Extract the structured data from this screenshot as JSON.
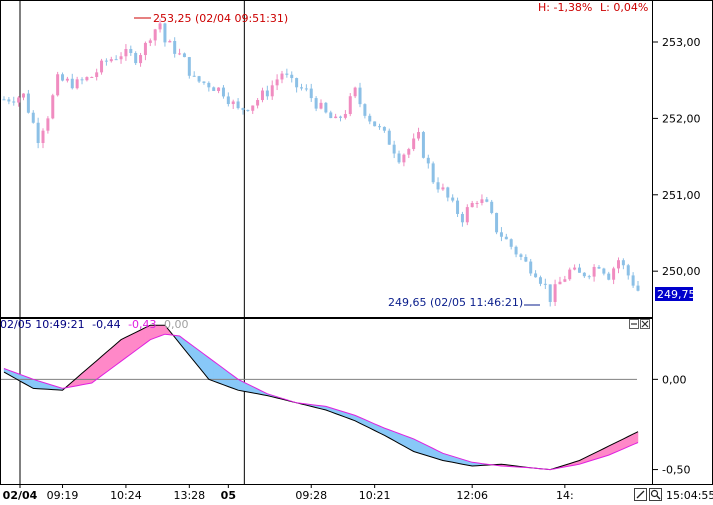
{
  "chart_data": [
    {
      "type": "candlestick",
      "panel": "price",
      "ylim": [
        249.4,
        253.55
      ],
      "y_ticks": [
        250.0,
        251.0,
        252.0,
        253.0
      ],
      "y_tick_labels": [
        "250,00",
        "251,00",
        "252,00",
        "253,00"
      ],
      "header_stats": [
        "H: -1,38%",
        "L: 0,04%"
      ],
      "last_price": 249.75,
      "last_price_label": "249,75",
      "high_annotation": "253,25 (02/04 09:51:31)",
      "low_annotation": "249,65 (02/05 11:46:21)",
      "colors": {
        "up": "#f08cc0",
        "down": "#8cc0e6",
        "annotation": "#cc0000",
        "low_annotation": "#0a1e8c"
      },
      "price_path": [
        [
          0,
          252.25
        ],
        [
          4,
          252.3
        ],
        [
          7,
          251.75
        ],
        [
          9,
          252.05
        ],
        [
          11,
          252.5
        ],
        [
          15,
          252.45
        ],
        [
          18,
          252.55
        ],
        [
          21,
          252.75
        ],
        [
          24,
          252.85
        ],
        [
          27,
          252.8
        ],
        [
          29,
          252.95
        ],
        [
          30,
          253.1
        ],
        [
          32,
          253.25
        ],
        [
          33,
          253.0
        ],
        [
          35,
          252.9
        ],
        [
          37,
          252.75
        ],
        [
          39,
          252.5
        ],
        [
          42,
          252.45
        ],
        [
          45,
          252.35
        ],
        [
          48,
          252.1
        ],
        [
          51,
          252.2
        ],
        [
          54,
          252.35
        ],
        [
          57,
          252.6
        ],
        [
          59,
          252.45
        ],
        [
          62,
          252.35
        ],
        [
          64,
          252.2
        ],
        [
          66,
          252.05
        ],
        [
          68,
          251.95
        ],
        [
          70,
          252.1
        ],
        [
          72,
          252.35
        ],
        [
          73,
          252.2
        ],
        [
          75,
          252.0
        ],
        [
          77,
          251.85
        ],
        [
          79,
          251.7
        ],
        [
          81,
          251.5
        ],
        [
          83,
          251.6
        ],
        [
          85,
          251.75
        ],
        [
          86,
          251.55
        ],
        [
          88,
          251.2
        ],
        [
          90,
          251.05
        ],
        [
          92,
          250.85
        ],
        [
          94,
          250.7
        ],
        [
          95,
          250.8
        ],
        [
          97,
          250.95
        ],
        [
          99,
          250.85
        ],
        [
          101,
          250.55
        ],
        [
          103,
          250.4
        ],
        [
          105,
          250.25
        ],
        [
          107,
          250.1
        ],
        [
          109,
          250.0
        ],
        [
          111,
          249.8
        ],
        [
          112,
          249.65
        ],
        [
          114,
          249.85
        ],
        [
          116,
          250.0
        ],
        [
          118,
          249.95
        ],
        [
          120,
          250.0
        ],
        [
          122,
          250.1
        ],
        [
          124,
          249.95
        ],
        [
          126,
          250.15
        ],
        [
          128,
          249.95
        ],
        [
          130,
          249.75
        ]
      ],
      "candles_total": 131
    },
    {
      "type": "area",
      "panel": "oscillator",
      "legend": [
        "02/05 10:49:21",
        "-0,44",
        "-0,43",
        "0,00"
      ],
      "legend_colors": [
        "#000080",
        "#000080",
        "#e020e0",
        "#a0a0a0"
      ],
      "ylim": [
        -0.58,
        0.34
      ],
      "y_ticks": [
        0.0,
        -0.5
      ],
      "y_tick_labels": [
        "0,00",
        "-0,50"
      ],
      "reference_line": 0.0,
      "series": [
        {
          "name": "-0,44",
          "color": "#000000",
          "values": [
            [
              0,
              0.04
            ],
            [
              6,
              -0.05
            ],
            [
              12,
              -0.06
            ],
            [
              18,
              0.08
            ],
            [
              24,
              0.22
            ],
            [
              30,
              0.3
            ],
            [
              33,
              0.3
            ],
            [
              36,
              0.2
            ],
            [
              42,
              0.0
            ],
            [
              48,
              -0.06
            ],
            [
              54,
              -0.09
            ],
            [
              60,
              -0.13
            ],
            [
              66,
              -0.17
            ],
            [
              72,
              -0.23
            ],
            [
              78,
              -0.31
            ],
            [
              84,
              -0.4
            ],
            [
              90,
              -0.45
            ],
            [
              96,
              -0.48
            ],
            [
              102,
              -0.47
            ],
            [
              108,
              -0.49
            ],
            [
              112,
              -0.5
            ],
            [
              118,
              -0.45
            ],
            [
              124,
              -0.37
            ],
            [
              130,
              -0.29
            ]
          ]
        },
        {
          "name": "-0,43",
          "color": "#e020e0",
          "values": [
            [
              0,
              0.06
            ],
            [
              6,
              0.0
            ],
            [
              12,
              -0.05
            ],
            [
              18,
              -0.02
            ],
            [
              24,
              0.1
            ],
            [
              30,
              0.22
            ],
            [
              33,
              0.25
            ],
            [
              36,
              0.24
            ],
            [
              42,
              0.12
            ],
            [
              48,
              0.0
            ],
            [
              54,
              -0.08
            ],
            [
              60,
              -0.13
            ],
            [
              66,
              -0.15
            ],
            [
              72,
              -0.2
            ],
            [
              78,
              -0.27
            ],
            [
              84,
              -0.33
            ],
            [
              90,
              -0.41
            ],
            [
              96,
              -0.46
            ],
            [
              102,
              -0.48
            ],
            [
              108,
              -0.49
            ],
            [
              112,
              -0.5
            ],
            [
              118,
              -0.47
            ],
            [
              124,
              -0.42
            ],
            [
              130,
              -0.35
            ]
          ]
        }
      ],
      "fill_colors": {
        "positive": "#ff88c8",
        "negative": "#88c8f8"
      }
    }
  ],
  "x_axis": {
    "labels": [
      "02/04",
      "09:19",
      "10:24",
      "13:28",
      "05",
      "09:28",
      "10:21",
      "12:06",
      "14:"
    ],
    "label_candle_index": [
      0,
      12,
      25,
      38,
      46,
      63,
      76,
      96,
      115
    ],
    "day_separators": [
      0,
      46
    ],
    "time_readout": "15:04:55"
  }
}
